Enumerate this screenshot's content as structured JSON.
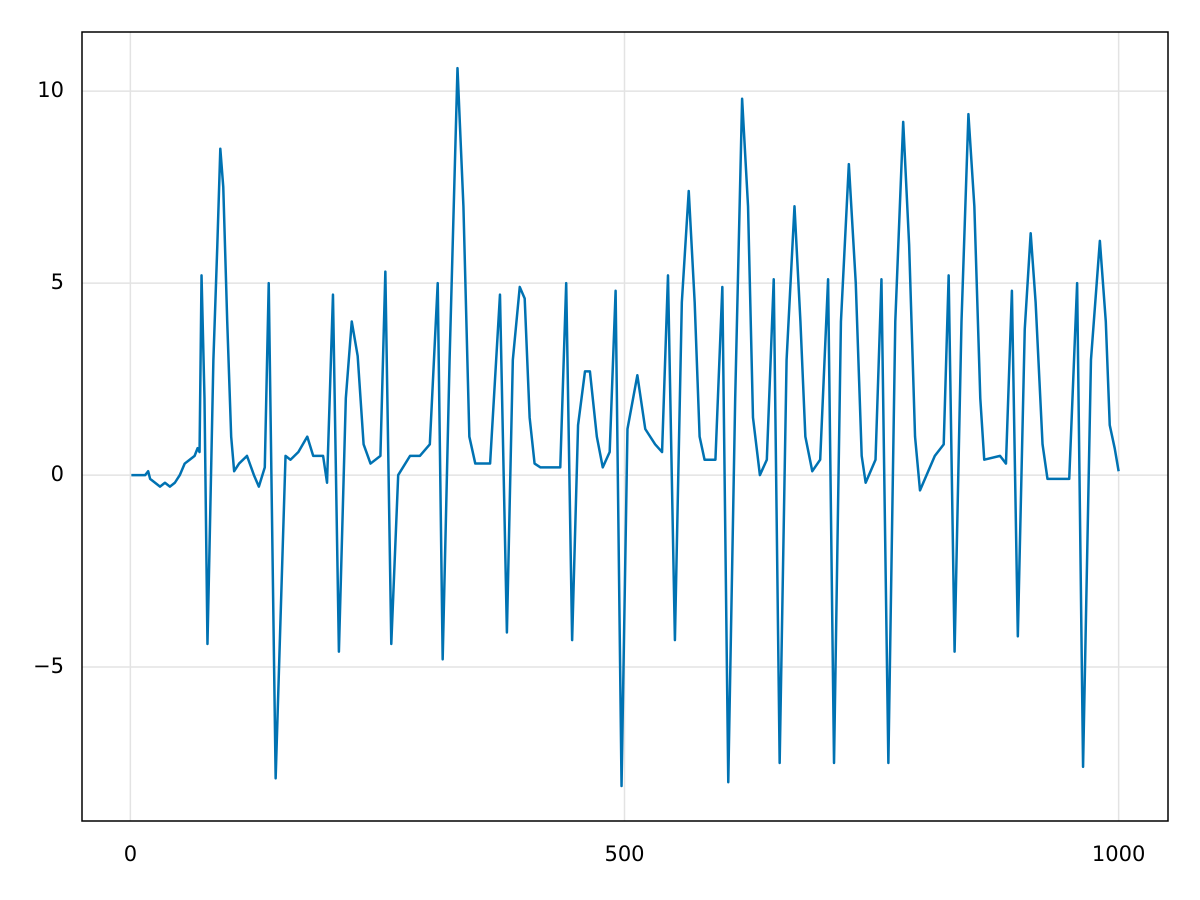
{
  "chart_data": {
    "type": "line",
    "x": [
      1,
      10,
      15,
      18,
      20,
      25,
      30,
      35,
      40,
      45,
      50,
      55,
      60,
      65,
      68,
      70,
      72,
      75,
      78,
      80,
      84,
      88,
      91,
      94,
      98,
      102,
      105,
      110,
      118,
      125,
      130,
      136,
      140,
      147,
      154,
      157,
      162,
      170,
      179,
      185,
      195,
      199,
      205,
      211,
      218,
      224,
      230,
      236,
      243,
      253,
      258,
      264,
      271,
      283,
      293,
      303,
      311,
      316,
      323,
      331,
      337,
      343,
      349,
      364,
      374,
      381,
      387,
      394,
      399,
      404,
      409,
      415,
      435,
      441,
      447,
      453,
      460,
      465,
      472,
      478,
      485,
      491,
      497,
      503,
      513,
      521,
      531,
      538,
      544,
      551,
      558,
      565,
      571,
      576,
      581,
      592,
      599,
      605,
      612,
      619,
      625,
      630,
      637,
      644,
      651,
      657,
      664,
      672,
      678,
      683,
      690,
      698,
      706,
      712,
      719,
      727,
      734,
      740,
      744,
      754,
      760,
      767,
      774,
      782,
      788,
      794,
      799,
      814,
      823,
      828,
      834,
      841,
      848,
      854,
      860,
      864,
      880,
      886,
      892,
      898,
      905,
      911,
      916,
      923,
      928,
      940,
      950,
      958,
      964,
      972,
      981,
      987,
      991,
      996,
      1000
    ],
    "series": [
      {
        "color": "#0072b2",
        "values": [
          0,
          0,
          0,
          0.1,
          -0.1,
          -0.2,
          -0.3,
          -0.2,
          -0.3,
          -0.2,
          0,
          0.3,
          0.4,
          0.5,
          0.7,
          0.6,
          5.2,
          2,
          -4.4,
          -2,
          3,
          6,
          8.5,
          7.5,
          4,
          1,
          0.1,
          0.3,
          0.5,
          0,
          -0.3,
          0.2,
          5,
          -7.9,
          -2,
          0.5,
          0.4,
          0.6,
          1,
          0.5,
          0.5,
          -0.2,
          4.7,
          -4.6,
          2,
          4,
          3.1,
          0.8,
          0.3,
          0.5,
          5.3,
          -4.4,
          0,
          0.5,
          0.5,
          0.8,
          5,
          -4.8,
          3,
          10.6,
          7,
          1,
          0.3,
          0.3,
          4.7,
          -4.1,
          3,
          4.9,
          4.6,
          1.5,
          0.3,
          0.2,
          0.2,
          5,
          -4.3,
          1.3,
          2.7,
          2.7,
          1,
          0.2,
          0.6,
          4.8,
          -8.1,
          1.2,
          2.6,
          1.2,
          0.8,
          0.6,
          5.2,
          -4.3,
          4.5,
          7.4,
          4.5,
          1,
          0.4,
          0.4,
          4.9,
          -8,
          2,
          9.8,
          7,
          1.5,
          0,
          0.4,
          5.1,
          -7.5,
          3,
          7,
          4,
          1,
          0.1,
          0.4,
          5.1,
          -7.5,
          4,
          8.1,
          5,
          0.5,
          -0.2,
          0.4,
          5.1,
          -7.5,
          4,
          9.2,
          6,
          1,
          -0.4,
          0.5,
          0.8,
          5.2,
          -4.6,
          4,
          9.4,
          7,
          2,
          0.4,
          0.5,
          0.3,
          4.8,
          -4.2,
          3.8,
          6.3,
          4.5,
          0.8,
          -0.1,
          -0.1,
          -0.1,
          5,
          -7.6,
          3,
          6.1,
          4,
          1.3,
          0.7,
          0.1
        ]
      }
    ],
    "xlim": [
      -48.95,
      1049.95
    ],
    "ylim": [
      -9.01,
      11.54
    ],
    "xticks": [
      0,
      500,
      1000
    ],
    "yticks": [
      {
        "value": -5,
        "label": "−5"
      },
      0,
      5,
      10
    ],
    "grid": true
  }
}
